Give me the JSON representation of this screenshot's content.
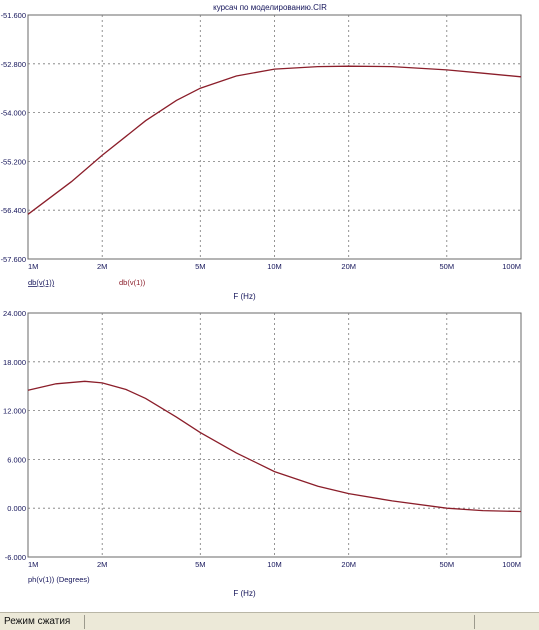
{
  "window": {
    "title": "курсач по моделированию.CIR"
  },
  "colors": {
    "curve": "#8b1e2a",
    "grid": "#7a7a7a",
    "tick_text": "#14145a",
    "background": "#ffffff"
  },
  "status_bar": {
    "text": "Режим сжатия"
  },
  "chart_data": [
    {
      "type": "line",
      "xscale": "log",
      "xlim": [
        1000000,
        100000000
      ],
      "ylim": [
        -57.6,
        -51.6
      ],
      "x_ticks": [
        1000000,
        2000000,
        5000000,
        10000000,
        20000000,
        50000000,
        100000000
      ],
      "x_tick_labels": [
        "1M",
        "2M",
        "5M",
        "10M",
        "20M",
        "50M",
        "100M"
      ],
      "y_ticks": [
        -51.6,
        -52.8,
        -54.0,
        -55.2,
        -56.4,
        -57.6
      ],
      "y_tick_labels": [
        "-51.600",
        "-52.800",
        "-54.000",
        "-55.200",
        "-56.400",
        "-57.600"
      ],
      "xlabel": "F (Hz)",
      "grid": true,
      "legend": [
        "db(v(1))",
        "db(v(1))"
      ],
      "series": [
        {
          "name": "db(v(1))",
          "x": [
            1000000,
            1500000,
            2000000,
            3000000,
            4000000,
            5000000,
            7000000,
            10000000,
            15000000,
            20000000,
            30000000,
            50000000,
            70000000,
            100000000
          ],
          "values": [
            -56.5,
            -55.7,
            -55.05,
            -54.2,
            -53.7,
            -53.4,
            -53.1,
            -52.93,
            -52.87,
            -52.86,
            -52.87,
            -52.95,
            -53.03,
            -53.12
          ]
        }
      ]
    },
    {
      "type": "line",
      "xscale": "log",
      "xlim": [
        1000000,
        100000000
      ],
      "ylim": [
        -6.0,
        24.0
      ],
      "x_ticks": [
        1000000,
        2000000,
        5000000,
        10000000,
        20000000,
        50000000,
        100000000
      ],
      "x_tick_labels": [
        "1M",
        "2M",
        "5M",
        "10M",
        "20M",
        "50M",
        "100M"
      ],
      "y_ticks": [
        24.0,
        18.0,
        12.0,
        6.0,
        0.0,
        -6.0
      ],
      "y_tick_labels": [
        "24.000",
        "18.000",
        "12.000",
        "6.000",
        "0.000",
        "-6.000"
      ],
      "xlabel": "F (Hz)",
      "grid": true,
      "legend": [
        "ph(v(1)) (Degrees)"
      ],
      "series": [
        {
          "name": "ph(v(1)) (Degrees)",
          "x": [
            1000000,
            1300000,
            1700000,
            2000000,
            2500000,
            3000000,
            4000000,
            5000000,
            7000000,
            10000000,
            15000000,
            20000000,
            30000000,
            50000000,
            70000000,
            100000000
          ],
          "values": [
            14.5,
            15.3,
            15.6,
            15.4,
            14.6,
            13.5,
            11.2,
            9.3,
            6.8,
            4.5,
            2.7,
            1.8,
            0.9,
            0.0,
            -0.3,
            -0.4
          ]
        }
      ]
    }
  ]
}
